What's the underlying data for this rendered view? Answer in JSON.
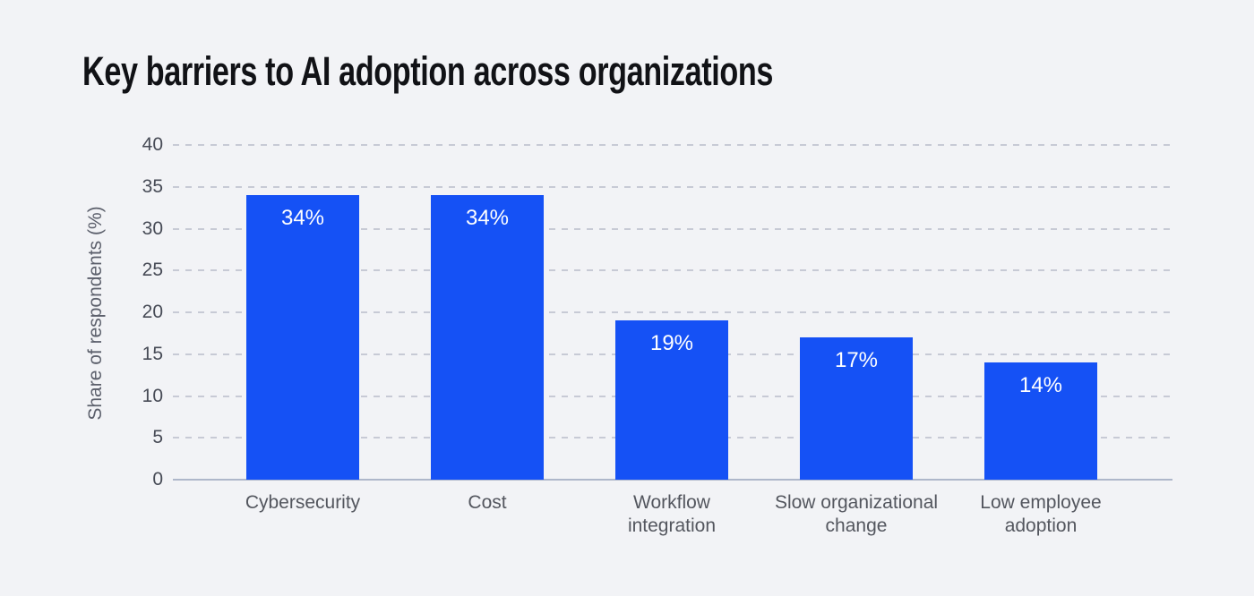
{
  "title": "Key barriers to AI adoption across organizations",
  "chart_data": {
    "type": "bar",
    "title": "Key barriers to AI adoption across organizations",
    "categories": [
      "Cybersecurity",
      "Cost",
      "Workflow integration",
      "Slow organizational change",
      "Low employee adoption"
    ],
    "category_display": [
      "Cybersecurity",
      "Cost",
      "Workflow\nintegration",
      "Slow organizational\nchange",
      "Low employee\nadoption"
    ],
    "values": [
      34,
      34,
      19,
      17,
      14
    ],
    "bar_labels": [
      "34%",
      "34%",
      "19%",
      "17%",
      "14%"
    ],
    "xlabel": "",
    "ylabel": "Share of respondents (%)",
    "yticks": [
      0,
      5,
      10,
      15,
      20,
      25,
      30,
      35,
      40
    ],
    "ylim": [
      0,
      40
    ],
    "grid": "horizontal dashed gridlines, solid baseline at 0",
    "legend": "none",
    "bar_value_label_position": "inside-top"
  },
  "colors": {
    "background": "#f2f3f6",
    "bar": "#1551f5",
    "bar_label": "#ffffff",
    "title": "#111216",
    "tick_label": "#474b56",
    "category_label": "#53565e",
    "axis_label": "#5b5f6b",
    "gridline": "#c7cad5",
    "zero_line": "#aeb7ca"
  }
}
